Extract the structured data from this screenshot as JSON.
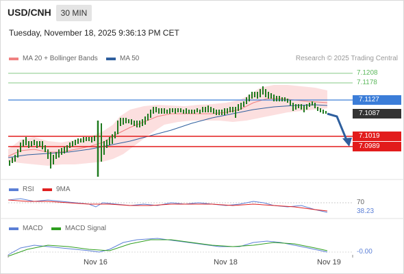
{
  "header": {
    "symbol": "USD/CNH",
    "timeframe": "30 MIN"
  },
  "datetime": "Tuesday, November 18, 2025 9:36:13 PM CET",
  "main_legend": [
    {
      "label": "MA 20 + Bollinger Bands",
      "color": "#f08080"
    },
    {
      "label": "MA 50",
      "color": "#2e5f9e"
    }
  ],
  "credit": "Research © 2025 Trading Central",
  "price_levels": {
    "r2": "7.1208",
    "r1": "7.1178",
    "pivot": "7.1127",
    "last": "7.1087",
    "s1": "7.1019",
    "s2": "7.0989"
  },
  "rsi_legend": [
    {
      "label": "RSI",
      "color": "#5b7fd6"
    },
    {
      "label": "9MA",
      "color": "#e02020"
    }
  ],
  "rsi_levels": {
    "upper": "70",
    "value": "38.23"
  },
  "macd_legend": [
    {
      "label": "MACD",
      "color": "#5b7fd6"
    },
    {
      "label": "MACD Signal",
      "color": "#2e9e1e"
    }
  ],
  "macd_value": "-0.00",
  "x_axis": [
    "Nov 16",
    "Nov 18",
    "Nov 19"
  ],
  "colors": {
    "green_line": "#5cb85c",
    "blue_line": "#3b7dd8",
    "red_line": "#e21c1c",
    "arrow": "#2e5f9e",
    "candle": "#1e7a1e",
    "candle_down": "#8b1a1a"
  },
  "chart_data": {
    "type": "candlestick",
    "title": "USD/CNH",
    "price_range": [
      7.095,
      7.123
    ],
    "horizontal_levels": [
      7.1208,
      7.1178,
      7.1127,
      7.1019,
      7.0989
    ],
    "last_price": 7.1087,
    "rsi": 38.23,
    "rsi_reference": 70,
    "macd": -0.0
  }
}
